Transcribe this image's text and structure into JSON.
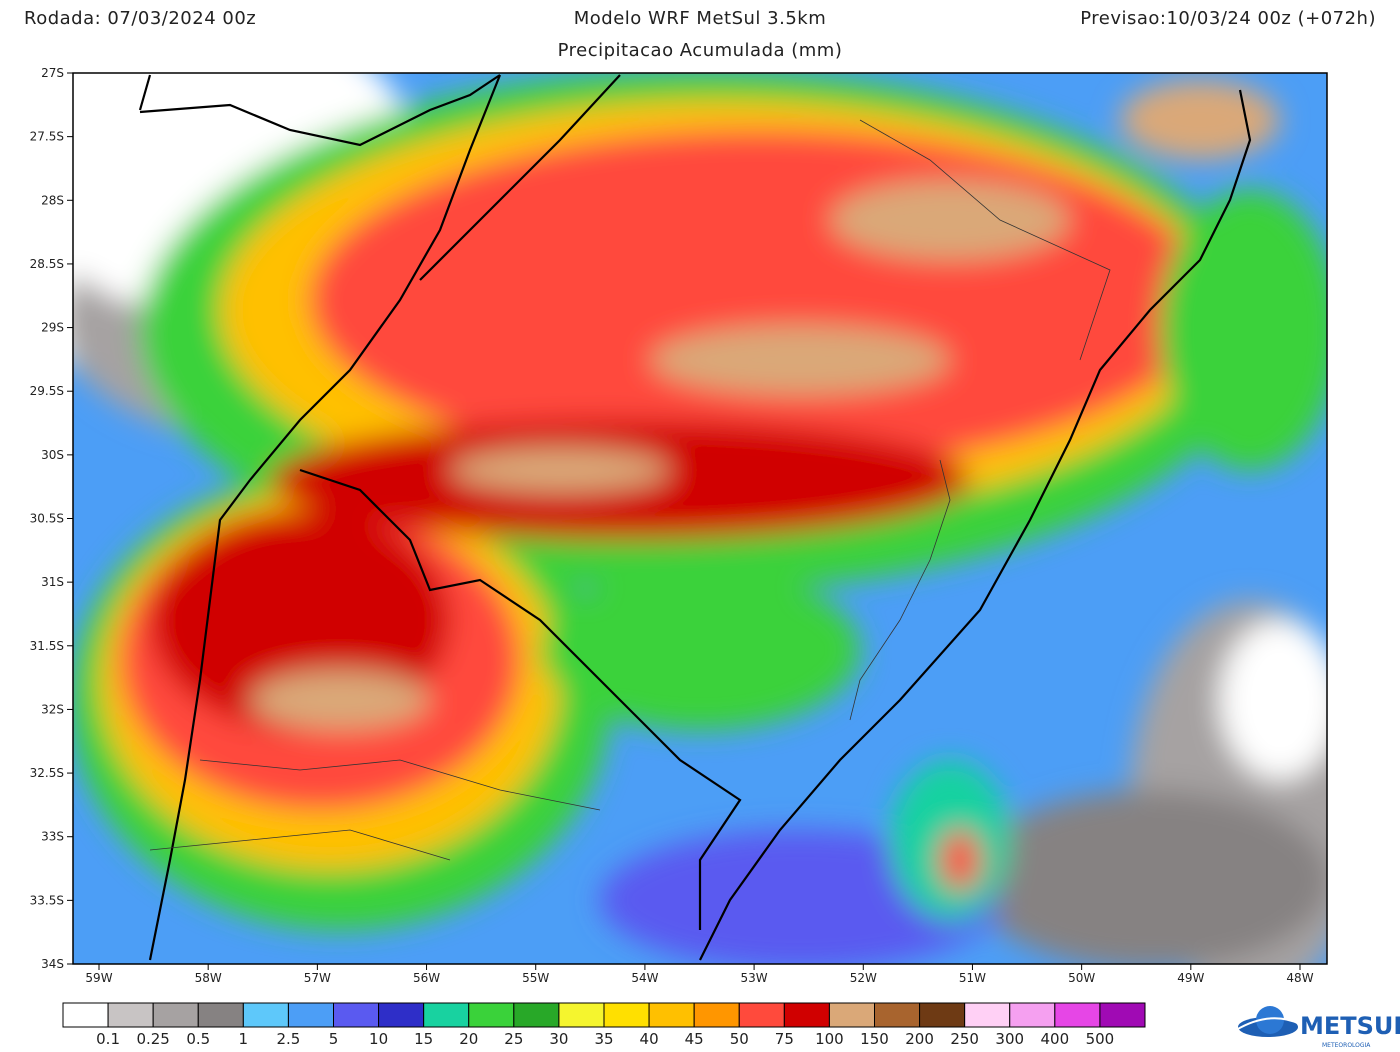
{
  "header": {
    "left": "Rodada: 07/03/2024 00z",
    "title": "Modelo WRF MetSul 3.5km",
    "subtitle": "Precipitacao Acumulada (mm)",
    "right": "Previsao:10/03/24 00z (+072h)"
  },
  "map": {
    "lat_labels": [
      "27S",
      "27.5S",
      "28S",
      "28.5S",
      "29S",
      "29.5S",
      "30S",
      "30.5S",
      "31S",
      "31.5S",
      "32S",
      "32.5S",
      "33S",
      "33.5S",
      "34S"
    ],
    "lon_labels": [
      "59W",
      "58W",
      "57W",
      "56W",
      "55W",
      "54W",
      "53W",
      "52W",
      "51W",
      "50W",
      "49W",
      "48W"
    ]
  },
  "colorbar": {
    "levels": [
      0.1,
      0.25,
      0.5,
      1,
      2.5,
      5,
      10,
      15,
      20,
      25,
      30,
      35,
      40,
      45,
      50,
      75,
      100,
      150,
      200,
      250,
      300,
      400,
      500
    ],
    "colors": [
      "#ffffff",
      "#c8c4c4",
      "#a6a2a2",
      "#868282",
      "#5ec8fa",
      "#4c9ef6",
      "#5a5af0",
      "#2e2ec8",
      "#18d2a0",
      "#3ad23a",
      "#28a828",
      "#f5f52e",
      "#ffe000",
      "#ffc000",
      "#ff9600",
      "#ff4a3c",
      "#d00000",
      "#daa878",
      "#a8642e",
      "#6e3a14",
      "#ffd0f5",
      "#f5a0f0",
      "#e646e6",
      "#a00ab4"
    ]
  },
  "logo": {
    "name": "METSUL",
    "sub": "METEOROLOGIA"
  }
}
